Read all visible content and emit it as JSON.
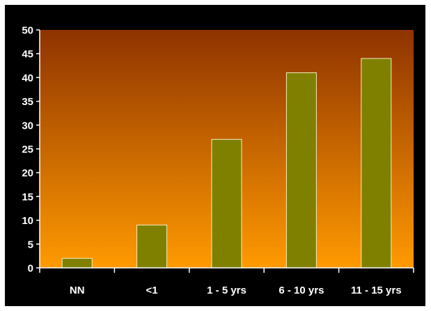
{
  "chart_data": {
    "type": "bar",
    "title": "",
    "xlabel": "",
    "ylabel": "",
    "categories": [
      "NN",
      "<1",
      "1 - 5 yrs",
      "6 - 10 yrs",
      "11 - 15 yrs"
    ],
    "values": [
      2,
      9,
      27,
      41,
      44
    ],
    "ylim": [
      0,
      50
    ],
    "yticks": [
      0,
      5,
      10,
      15,
      20,
      25,
      30,
      35,
      40,
      45,
      50
    ],
    "grid": false,
    "legend": "none",
    "colors": {
      "bar_fill": "#808000",
      "bar_stroke": "#f3efc0",
      "plot_gradient_top": "#8f3300",
      "plot_gradient_bottom": "#ff9a00",
      "frame_background": "#000000",
      "axis_color": "#ffffff",
      "text_color": "#ffffff"
    }
  }
}
